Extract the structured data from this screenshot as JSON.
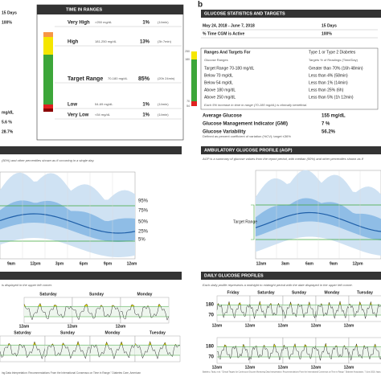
{
  "panel_a": {
    "stats_fragments": [
      "15 Days",
      "100%",
      "mg/dL",
      "5.6 %",
      "28.7%"
    ],
    "time_in_ranges": {
      "title": "TIME IN RANGES",
      "rows": [
        {
          "label": "Very High",
          "range": ">250 mg/dL",
          "percent": "1%",
          "time": "(14min)"
        },
        {
          "label": "High",
          "range": "181-250 mg/dL",
          "percent": "13%",
          "time": "(3h 7min)"
        },
        {
          "label": "Target Range",
          "range": "70-180 mg/dL",
          "percent": "85%",
          "time": "(20h 24min)"
        },
        {
          "label": "Low",
          "range": "54-69 mg/dL",
          "percent": "1%",
          "time": "(14min)"
        },
        {
          "label": "Very Low",
          "range": "<54 mg/dL",
          "percent": "1%",
          "time": "(14min)"
        }
      ]
    },
    "agp_note": "(50%) and other percentiles shown as if occurring in a single day.",
    "agp_percentiles": [
      "95%",
      "75%",
      "50%",
      "25%",
      "5%"
    ],
    "agp_times": [
      "9am",
      "12pm",
      "3pm",
      "6pm",
      "9pm",
      "12am"
    ],
    "daily_note": "is displayed in the upper left corner.",
    "daily_days_row1": [
      "Saturday",
      "Sunday",
      "Monday"
    ],
    "daily_days_row2": [
      "Saturday",
      "Sunday",
      "Monday",
      "Tuesday"
    ],
    "daily_time_label": "12am",
    "footnote": "ing Data Interpretation: Recommendations From the International Consensus on Time in Range.\" Diabetes Care, American"
  },
  "panel_b": {
    "label": "b",
    "title": "GLUCOSE STATISTICS AND TARGETS",
    "date_range": "May 24, 2018 - June 7, 2018",
    "days": "15 Days",
    "active_label": "% Time CGM is Active",
    "active_value": "100%",
    "table_header": [
      "Ranges And Targets For",
      "Type 1 or Type 2 Diabetes"
    ],
    "table_columns": [
      "Glucose Ranges",
      "Targets % of Readings (Time/Day)"
    ],
    "table_rows": [
      [
        "Target Range 70-180 mg/dL",
        "Greater than 70% (16h 48min)"
      ],
      [
        "Below 70 mg/dL",
        "Less than 4% (58min)"
      ],
      [
        "Below 54 mg/dL",
        "Less than 1% (14min)"
      ],
      [
        "Above 180 mg/dL",
        "Less than 25% (6h)"
      ],
      [
        "Above 250 mg/dL",
        "Less than 5% (1h 12min)"
      ]
    ],
    "table_note": "Each 5% increase in time in range (70-180 mg/dL) is clinically beneficial.",
    "stats": [
      [
        "Average Glucose",
        "155 mg/dL"
      ],
      [
        "Glucose Management Indicator (GMI)",
        "7 %"
      ],
      [
        "Glucose Variability",
        "56.2%"
      ]
    ],
    "variability_note": "Defined as percent coefficient of variation (%CV); target ≤36%",
    "bar_labels": [
      "250",
      "180",
      "70",
      "54"
    ],
    "agp_title": "AMBULATORY GLUCOSE PROFILE (AGP)",
    "agp_note": "AGP is a summary of glucose values from the report period, with median (50%) and other percentiles shown as if",
    "agp_target_label": "Target Range",
    "agp_times": [
      "12am",
      "3am",
      "6am",
      "9am",
      "12pm"
    ],
    "daily_title": "DAILY GLUCOSE PROFILES",
    "daily_note": "Each daily profile represents a midnight to midnight period with the date displayed in the upper left corner.",
    "daily_days": [
      "Friday",
      "Saturday",
      "Sunday",
      "Monday",
      "Tuesday"
    ],
    "daily_y_labels": [
      "180",
      "70"
    ],
    "daily_time_label": "12am",
    "footnote": "Battelino, Tadej, et al. \"Clinical Targets for Continuous Glucose Monitoring Data Interpretation: Recommendations From the International Consensus on Time in Range.\" Diabetes Association, 7 June 2019, https://doi.org/10.2337/dci19-0028."
  }
}
